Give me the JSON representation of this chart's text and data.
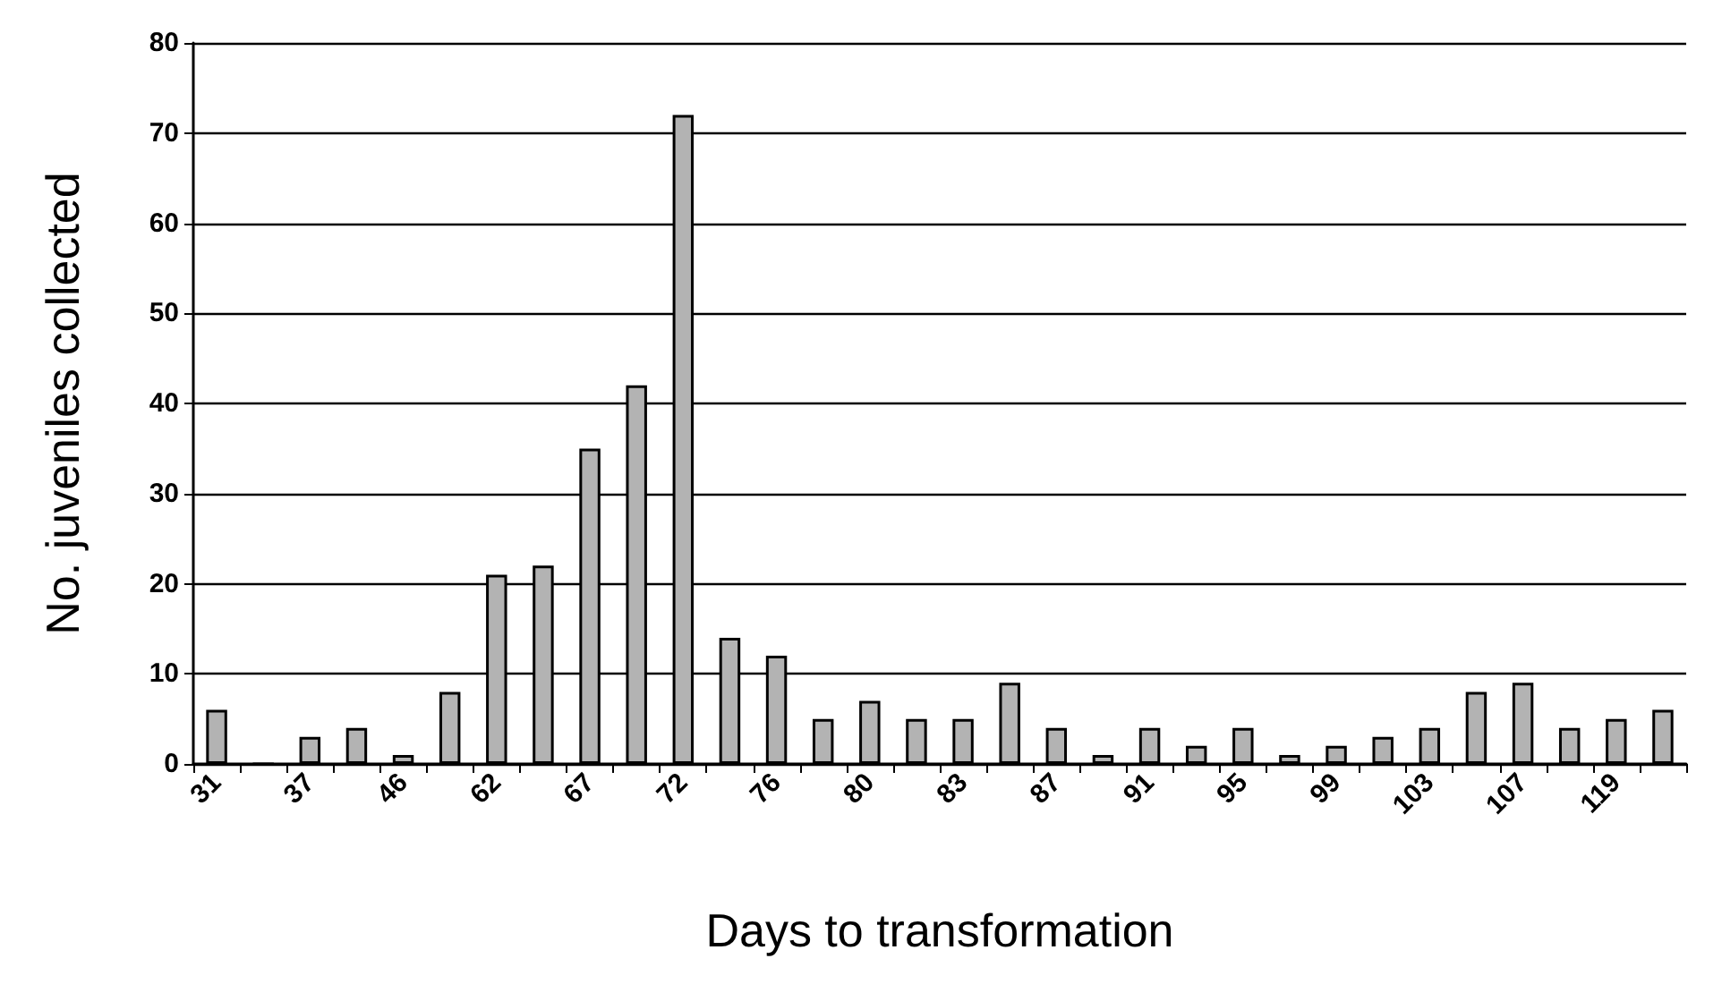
{
  "chart_data": {
    "type": "bar",
    "xlabel": "Days to transformation",
    "ylabel": "No. juveniles collected",
    "categories": [
      "31",
      null,
      "37",
      null,
      "46",
      null,
      "62",
      null,
      "67",
      null,
      "72",
      null,
      "76",
      null,
      "80",
      null,
      "83",
      null,
      "87",
      null,
      "91",
      null,
      "95",
      null,
      "99",
      null,
      "103",
      null,
      "107",
      null,
      "119",
      null
    ],
    "values": [
      6,
      0,
      3,
      4,
      1,
      8,
      21,
      22,
      35,
      42,
      72,
      14,
      12,
      5,
      7,
      5,
      5,
      9,
      4,
      1,
      4,
      2,
      4,
      1,
      2,
      3,
      4,
      8,
      9,
      4,
      5,
      6
    ],
    "color": "#b3b3b3",
    "ylim": [
      0,
      80
    ],
    "yticks": [
      0,
      10,
      20,
      30,
      40,
      50,
      60,
      70,
      80
    ],
    "grid": "y"
  }
}
